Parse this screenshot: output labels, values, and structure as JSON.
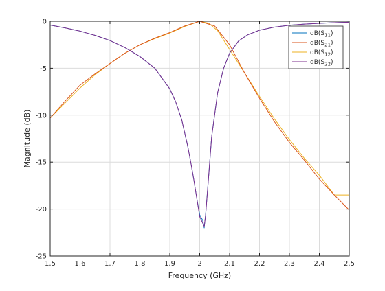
{
  "chart_data": {
    "type": "line",
    "title": "",
    "xlabel": "Frequency (GHz)",
    "ylabel": "Magnitude (dB)",
    "xlim": [
      1.5,
      2.5
    ],
    "ylim": [
      -25,
      0
    ],
    "grid": true,
    "legend_position": "top-right",
    "x_ticks": [
      1.5,
      1.6,
      1.7,
      1.8,
      1.9,
      2.0,
      2.1,
      2.2,
      2.3,
      2.4,
      2.5
    ],
    "x_tick_labels": [
      "1.5",
      "1.6",
      "1.7",
      "1.8",
      "1.9",
      "2",
      "2.1",
      "2.2",
      "2.3",
      "2.4",
      "2.5"
    ],
    "y_ticks": [
      0,
      -5,
      -10,
      -15,
      -20,
      -25
    ],
    "y_tick_labels": [
      "0",
      "-5",
      "-10",
      "-15",
      "-20",
      "-25"
    ],
    "series": [
      {
        "name": "dB(S11)",
        "label_base": "dB(S",
        "label_sub": "11",
        "label_end": ")",
        "color": "#0072bd",
        "x": [
          1.5,
          1.55,
          1.6,
          1.65,
          1.7,
          1.75,
          1.8,
          1.85,
          1.9,
          1.92,
          1.94,
          1.96,
          1.97,
          1.98,
          1.99,
          2.0,
          2.01,
          2.015,
          2.02,
          2.03,
          2.04,
          2.06,
          2.08,
          2.1,
          2.13,
          2.16,
          2.2,
          2.25,
          2.3,
          2.35,
          2.4,
          2.45,
          2.5
        ],
        "y": [
          -0.4,
          -0.7,
          -1.05,
          -1.5,
          -2.05,
          -2.8,
          -3.75,
          -5.0,
          -7.2,
          -8.6,
          -10.5,
          -13.3,
          -15.0,
          -16.8,
          -18.8,
          -20.6,
          -21.2,
          -22.0,
          -20.5,
          -16.5,
          -12.3,
          -7.6,
          -5.0,
          -3.4,
          -2.1,
          -1.45,
          -0.95,
          -0.62,
          -0.42,
          -0.3,
          -0.22,
          -0.15,
          -0.1
        ]
      },
      {
        "name": "dB(S21)",
        "label_base": "dB(S",
        "label_sub": "21",
        "label_end": ")",
        "color": "#d95319",
        "x": [
          1.5,
          1.55,
          1.6,
          1.65,
          1.7,
          1.75,
          1.8,
          1.85,
          1.9,
          1.95,
          2.0,
          2.05,
          2.1,
          2.15,
          2.2,
          2.25,
          2.3,
          2.35,
          2.4,
          2.45,
          2.5
        ],
        "y": [
          -10.3,
          -8.5,
          -6.8,
          -5.6,
          -4.5,
          -3.4,
          -2.5,
          -1.8,
          -1.2,
          -0.5,
          0.0,
          -0.5,
          -2.5,
          -5.5,
          -8.2,
          -10.7,
          -12.9,
          -14.8,
          -16.8,
          -18.5,
          -20.1
        ]
      },
      {
        "name": "dB(S12)",
        "label_base": "dB(S",
        "label_sub": "12",
        "label_end": ")",
        "color": "#edb120",
        "x": [
          1.5,
          1.55,
          1.6,
          1.65,
          1.7,
          1.75,
          1.8,
          1.85,
          1.9,
          1.95,
          2.0,
          2.03,
          2.06,
          2.1,
          2.15,
          2.2,
          2.25,
          2.3,
          2.35,
          2.4,
          2.45,
          2.5
        ],
        "y": [
          -10.3,
          -8.7,
          -7.1,
          -5.7,
          -4.5,
          -3.4,
          -2.5,
          -1.85,
          -1.25,
          -0.55,
          0.0,
          -0.2,
          -1.0,
          -3.0,
          -5.5,
          -8.0,
          -10.4,
          -12.6,
          -14.6,
          -16.4,
          -18.5,
          -18.5
        ]
      },
      {
        "name": "dB(S22)",
        "label_base": "dB(S",
        "label_sub": "22",
        "label_end": ")",
        "color": "#7e2f8e",
        "x": [
          1.5,
          1.55,
          1.6,
          1.65,
          1.7,
          1.75,
          1.8,
          1.85,
          1.9,
          1.92,
          1.94,
          1.96,
          1.97,
          1.98,
          1.99,
          2.0,
          2.01,
          2.015,
          2.02,
          2.03,
          2.04,
          2.06,
          2.08,
          2.1,
          2.13,
          2.16,
          2.2,
          2.25,
          2.3,
          2.35,
          2.4,
          2.45,
          2.5
        ],
        "y": [
          -0.4,
          -0.7,
          -1.05,
          -1.5,
          -2.05,
          -2.8,
          -3.75,
          -5.0,
          -7.2,
          -8.6,
          -10.5,
          -13.3,
          -15.0,
          -16.8,
          -18.8,
          -20.8,
          -21.5,
          -21.9,
          -20.6,
          -16.5,
          -12.3,
          -7.6,
          -5.0,
          -3.4,
          -2.1,
          -1.45,
          -0.95,
          -0.62,
          -0.42,
          -0.3,
          -0.22,
          -0.15,
          -0.1
        ]
      }
    ]
  }
}
